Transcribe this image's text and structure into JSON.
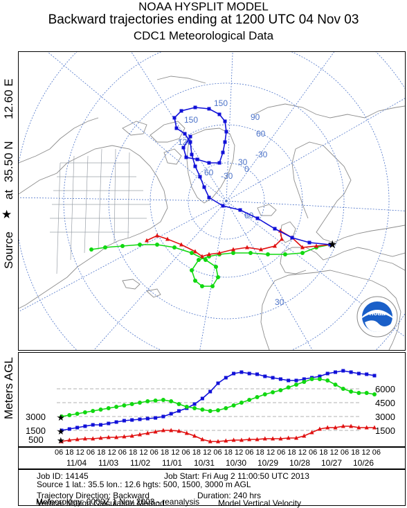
{
  "header": {
    "line1": "NOAA HYSPLIT MODEL",
    "line2": "Backward trajectories ending at 1200 UTC 04 Nov 03",
    "line3": "CDC1 Meteorological Data"
  },
  "source_axis": {
    "lon": "12.60 E",
    "lat": "35.50 N",
    "at": "at",
    "source": "Source"
  },
  "map": {
    "grid_labels": [
      "150",
      "90",
      "150",
      "120",
      "60",
      "-30",
      "30",
      "-30",
      "0",
      "60",
      "60",
      "30"
    ],
    "colors": {
      "blue": "#1010d8",
      "red": "#e01010",
      "green": "#10d810",
      "land": "#8c8c8c",
      "grid": "#4b72c8",
      "states": "#9aa0a8"
    }
  },
  "profile": {
    "ylabel": "Meters AGL",
    "left_ticks": [
      "3000",
      "1500",
      "500"
    ],
    "right_ticks": [
      "6000",
      "4500",
      "3000",
      "1500"
    ]
  },
  "time_axis": {
    "hour_labels": "06 18 12 06 18 12 06 18 12 06 18 12 06 18 12 06 18 12 06 18 12 06 18 12 06 18 12 06 18 12 06 18 12 06 18 12 06 18 12 06 18 12",
    "dates": [
      "11/04",
      "11/03",
      "11/02",
      "11/01",
      "10/31",
      "10/30",
      "10/29",
      "10/28",
      "10/27",
      "10/26"
    ]
  },
  "info": {
    "job_id": "Job ID: 14145",
    "job_start": "Job Start: Fri Aug  2 11:00:50 UTC 2013",
    "source_line": "Source 1 lat.: 35.5  lon.: 12.6  hgts: 500, 1500, 3000 m AGL",
    "direction": "Trajectory Direction: Backward",
    "duration": "Duration: 240 hrs",
    "vertical": "Vertical Motion Calculation Method:",
    "vertical_val": "Model Vertical Velocity",
    "met": "Meteorology: 0000Z  1 Nov 2003 - reanalysis"
  },
  "logo": {
    "text": "noaa",
    "ring": "NATIONAL OCEANIC AND ATMOSPHERIC ADMINISTRATION"
  }
}
